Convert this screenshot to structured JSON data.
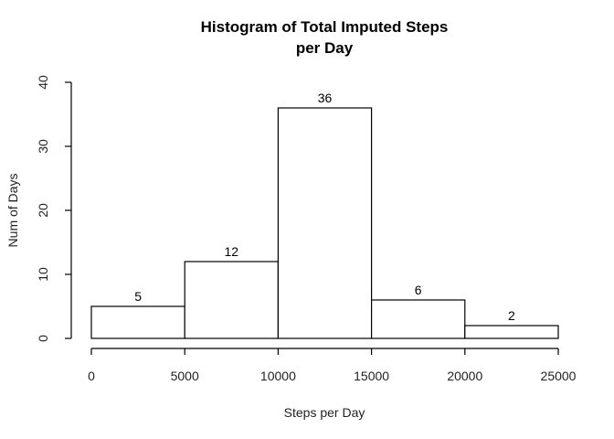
{
  "chart_data": {
    "type": "bar",
    "title_lines": [
      "Histogram of Total Imputed Steps",
      "per Day"
    ],
    "xlabel": "Steps per Day",
    "ylabel": "Num of Days",
    "bins": [
      {
        "start": 0,
        "end": 5000,
        "count": 5
      },
      {
        "start": 5000,
        "end": 10000,
        "count": 12
      },
      {
        "start": 10000,
        "end": 15000,
        "count": 36
      },
      {
        "start": 15000,
        "end": 20000,
        "count": 6
      },
      {
        "start": 20000,
        "end": 25000,
        "count": 2
      }
    ],
    "xlim": [
      0,
      25000
    ],
    "ylim": [
      0,
      40
    ],
    "xticks": [
      0,
      5000,
      10000,
      15000,
      20000,
      25000
    ],
    "yticks": [
      0,
      10,
      20,
      30,
      40
    ],
    "grid": false,
    "legend": "none",
    "bar_fill": "#ffffff",
    "bar_stroke": "#000000"
  }
}
